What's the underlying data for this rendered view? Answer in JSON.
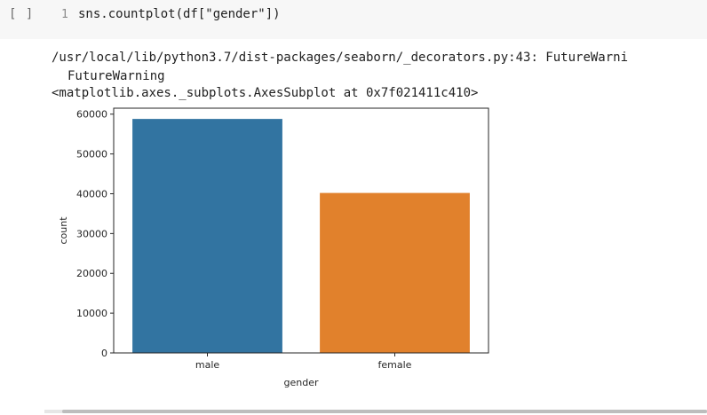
{
  "cell": {
    "run_marker": "[ ]",
    "line_number": "1",
    "code": "sns.countplot(df[\"gender\"])"
  },
  "output": {
    "warning_line": "/usr/local/lib/python3.7/dist-packages/seaborn/_decorators.py:43: FutureWarni",
    "warning_type": "FutureWarning",
    "repr": "<matplotlib.axes._subplots.AxesSubplot at 0x7f021411c410>"
  },
  "chart_data": {
    "type": "bar",
    "categories": [
      "male",
      "female"
    ],
    "values": [
      58800,
      40200
    ],
    "xlabel": "gender",
    "ylabel": "count",
    "ylim": [
      0,
      61500
    ],
    "yticks": [
      0,
      10000,
      20000,
      30000,
      40000,
      50000,
      60000
    ],
    "ytick_labels": [
      "0",
      "10000",
      "20000",
      "30000",
      "40000",
      "50000",
      "60000"
    ],
    "colors": [
      "#3274a1",
      "#e1812c"
    ],
    "grid": false
  }
}
